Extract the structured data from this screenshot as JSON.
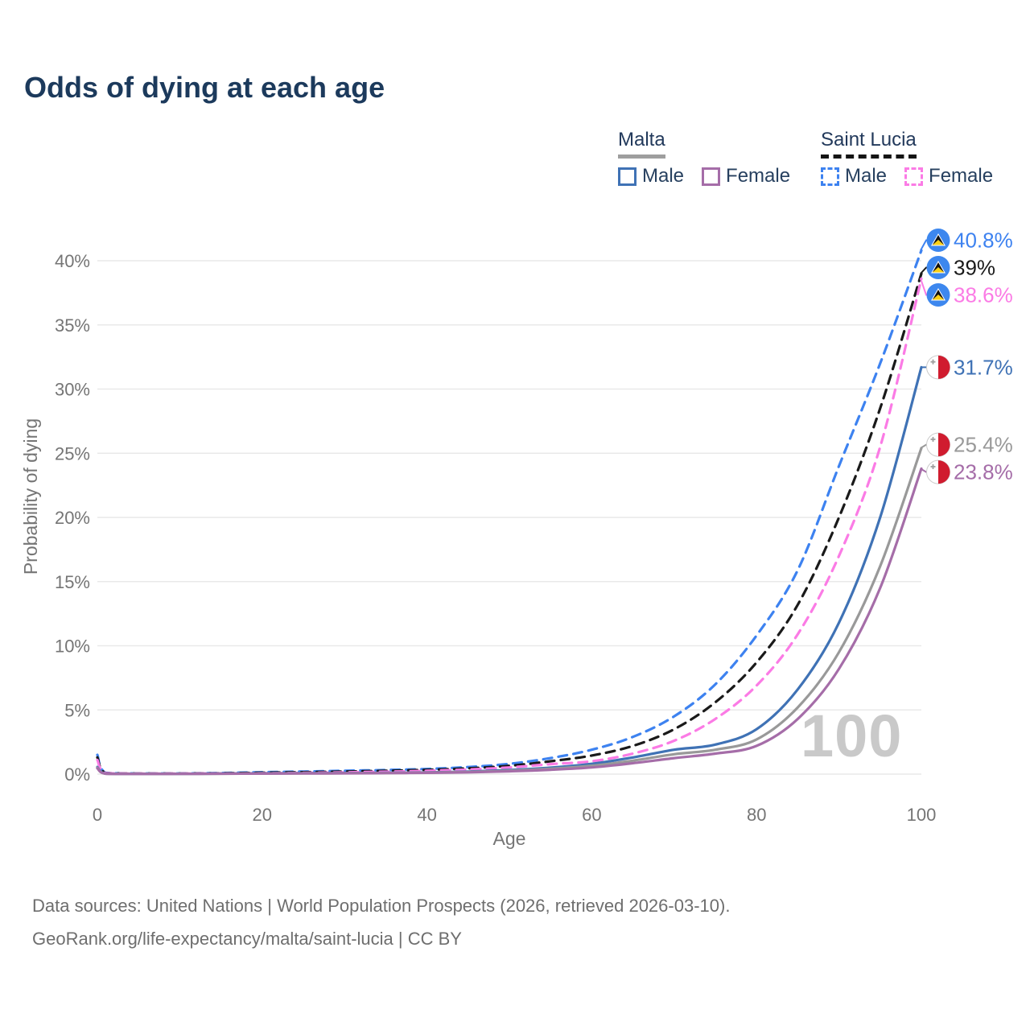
{
  "title": "Odds of dying at each age",
  "watermark": "100",
  "footer": {
    "line1": "Data sources: United Nations | World Population Prospects (2026, retrieved 2026-03-10).",
    "line2": "GeoRank.org/life-expectancy/malta/saint-lucia | CC BY"
  },
  "legend": {
    "groups": [
      {
        "label": "Malta",
        "line_style": "solid",
        "underline_color": "#9e9e9e",
        "items": [
          {
            "label": "Male",
            "color": "#3f72b5"
          },
          {
            "label": "Female",
            "color": "#a56da8"
          }
        ]
      },
      {
        "label": "Saint Lucia",
        "line_style": "dashed",
        "underline_color": "#141414",
        "items": [
          {
            "label": "Male",
            "color": "#3d82f0"
          },
          {
            "label": "Female",
            "color": "#fb7be5"
          }
        ]
      }
    ]
  },
  "chart_data": {
    "type": "line",
    "title": "Odds of dying at each age",
    "xlabel": "Age",
    "ylabel": "Probability of dying",
    "xlim": [
      0,
      100
    ],
    "ylim": [
      0,
      42
    ],
    "x_ticks": [
      0,
      20,
      40,
      60,
      80,
      100
    ],
    "y_ticks": [
      0,
      5,
      10,
      15,
      20,
      25,
      30,
      35,
      40
    ],
    "y_tick_suffix": "%",
    "grid": "horizontal",
    "legend_position": "top-right",
    "x": [
      0,
      1,
      5,
      10,
      15,
      20,
      25,
      30,
      35,
      40,
      45,
      50,
      55,
      60,
      65,
      70,
      75,
      80,
      85,
      90,
      95,
      100
    ],
    "series": [
      {
        "name": "Saint Lucia — Male",
        "country": "Saint Lucia",
        "sex": "male",
        "style": "dashed",
        "color": "#3d82f0",
        "flag": "saint-lucia",
        "end_label": "40.8%",
        "values": [
          1.5,
          0.1,
          0.05,
          0.05,
          0.09,
          0.15,
          0.2,
          0.26,
          0.32,
          0.4,
          0.55,
          0.8,
          1.25,
          1.9,
          2.9,
          4.5,
          7.0,
          10.8,
          15.9,
          24.0,
          32.0,
          40.8
        ]
      },
      {
        "name": "Saint Lucia — Both sexes",
        "country": "Saint Lucia",
        "sex": "both",
        "style": "dashed",
        "color": "#1a1a1a",
        "flag": "saint-lucia",
        "end_label": "39%",
        "values": [
          1.3,
          0.09,
          0.04,
          0.04,
          0.07,
          0.11,
          0.15,
          0.2,
          0.26,
          0.33,
          0.45,
          0.65,
          1.0,
          1.45,
          2.2,
          3.5,
          5.6,
          8.7,
          13.2,
          20.0,
          28.5,
          39.0
        ]
      },
      {
        "name": "Saint Lucia — Female",
        "country": "Saint Lucia",
        "sex": "female",
        "style": "dashed",
        "color": "#fb7be5",
        "flag": "saint-lucia",
        "end_label": "38.6%",
        "values": [
          1.1,
          0.08,
          0.04,
          0.04,
          0.05,
          0.07,
          0.1,
          0.14,
          0.19,
          0.26,
          0.36,
          0.52,
          0.78,
          1.0,
          1.6,
          2.6,
          4.3,
          6.9,
          10.9,
          17.0,
          25.5,
          38.6
        ]
      },
      {
        "name": "Malta — Male",
        "country": "Malta",
        "sex": "male",
        "style": "solid",
        "color": "#3f72b5",
        "flag": "malta",
        "end_label": "31.7%",
        "values": [
          0.55,
          0.04,
          0.02,
          0.02,
          0.04,
          0.06,
          0.07,
          0.08,
          0.1,
          0.14,
          0.2,
          0.32,
          0.5,
          0.8,
          1.3,
          1.9,
          2.3,
          3.5,
          6.6,
          11.8,
          20.0,
          31.7
        ]
      },
      {
        "name": "Malta — Both sexes",
        "country": "Malta",
        "sex": "both",
        "style": "solid",
        "color": "#999999",
        "flag": "malta",
        "end_label": "25.4%",
        "values": [
          0.5,
          0.03,
          0.02,
          0.02,
          0.03,
          0.05,
          0.06,
          0.07,
          0.09,
          0.12,
          0.17,
          0.27,
          0.42,
          0.65,
          1.05,
          1.55,
          1.9,
          2.7,
          5.2,
          9.5,
          16.2,
          25.4
        ]
      },
      {
        "name": "Malta — Female",
        "country": "Malta",
        "sex": "female",
        "style": "solid",
        "color": "#a56da8",
        "flag": "malta",
        "end_label": "23.8%",
        "values": [
          0.45,
          0.03,
          0.01,
          0.02,
          0.03,
          0.04,
          0.05,
          0.06,
          0.08,
          0.1,
          0.14,
          0.22,
          0.34,
          0.52,
          0.85,
          1.25,
          1.6,
          2.2,
          4.3,
          8.2,
          14.5,
          23.8
        ]
      }
    ],
    "flag_colors": {
      "saint_lucia_blue": "#3d87ee",
      "saint_lucia_yellow": "#fcd116",
      "saint_lucia_black": "#111111",
      "malta_red": "#d01c2f",
      "malta_white": "#ffffff",
      "malta_cross_gray": "#9e9e9e"
    }
  }
}
